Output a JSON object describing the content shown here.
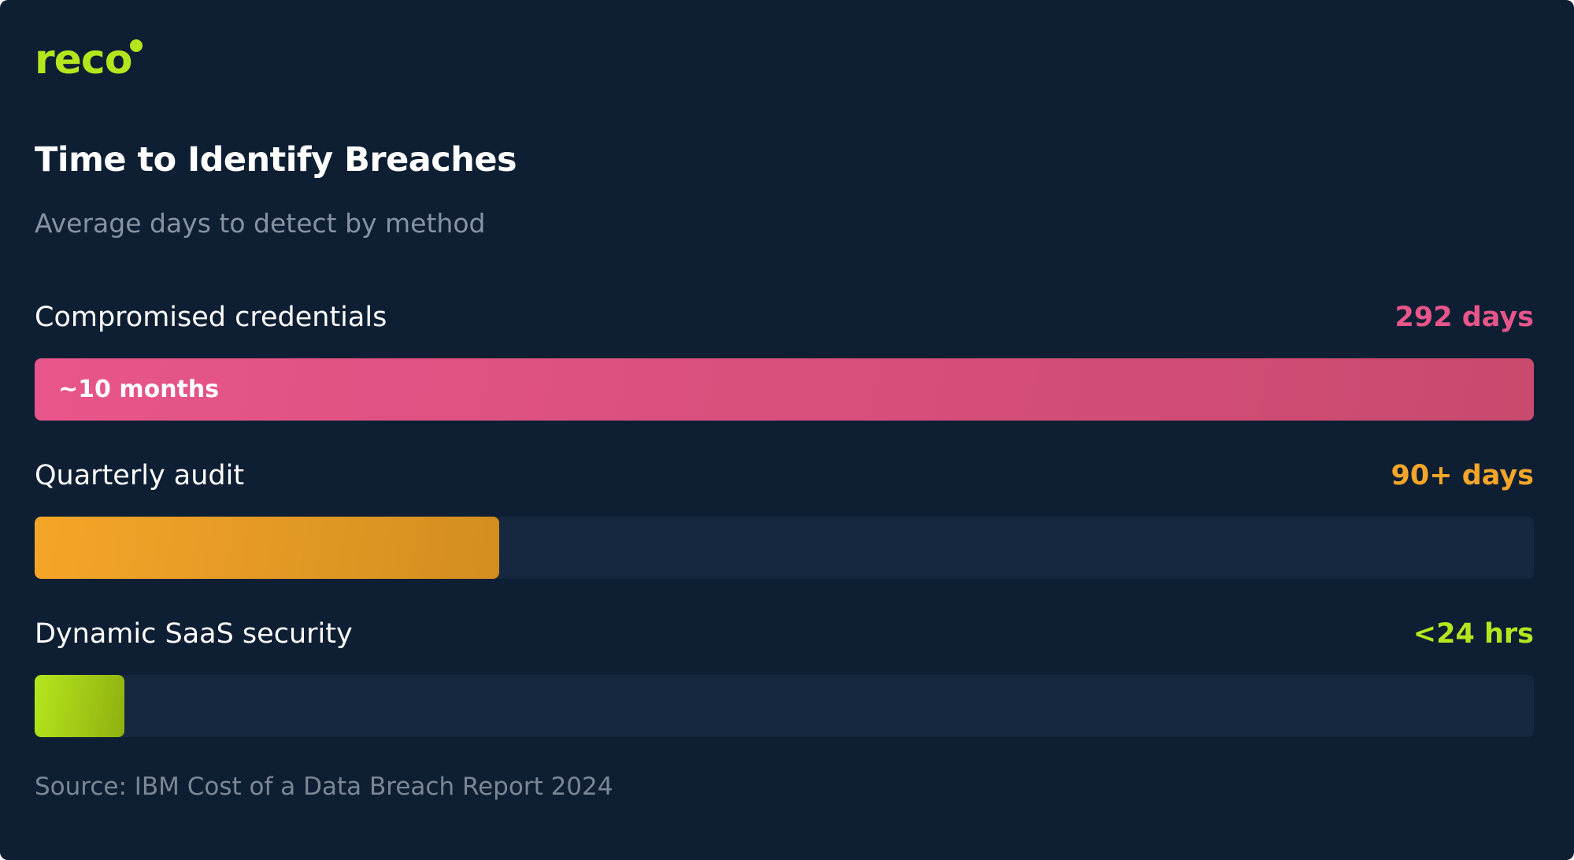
{
  "brand": {
    "logo_text": "reco",
    "accent": "#b5e61d"
  },
  "background": "#0f1f33",
  "chart_data": {
    "type": "bar",
    "orientation": "horizontal",
    "title": "Time to Identify Breaches",
    "subtitle": "Average days to detect by method",
    "categories": [
      "Compromised credentials",
      "Quarterly audit",
      "Dynamic SaaS security"
    ],
    "bars": [
      {
        "label": "Compromised credentials",
        "value_text": "292 days",
        "value_days": 292,
        "fill_fraction": 1.0,
        "inner_label": "~10 months",
        "color": "#e8558a",
        "color_end": "#c94a6e"
      },
      {
        "label": "Quarterly audit",
        "value_text": "90+ days",
        "value_days": 90,
        "fill_fraction": 0.31,
        "inner_label": "",
        "color": "#f5a629",
        "color_end": "#d38d1f"
      },
      {
        "label": "Dynamic SaaS security",
        "value_text": "<24 hrs",
        "value_days": 1,
        "fill_fraction": 0.06,
        "inner_label": "",
        "color": "#b5e61d",
        "color_end": "#8fb00f"
      }
    ],
    "track_color": "#16283f",
    "source": "Source: IBM Cost of a Data Breach Report 2024"
  }
}
